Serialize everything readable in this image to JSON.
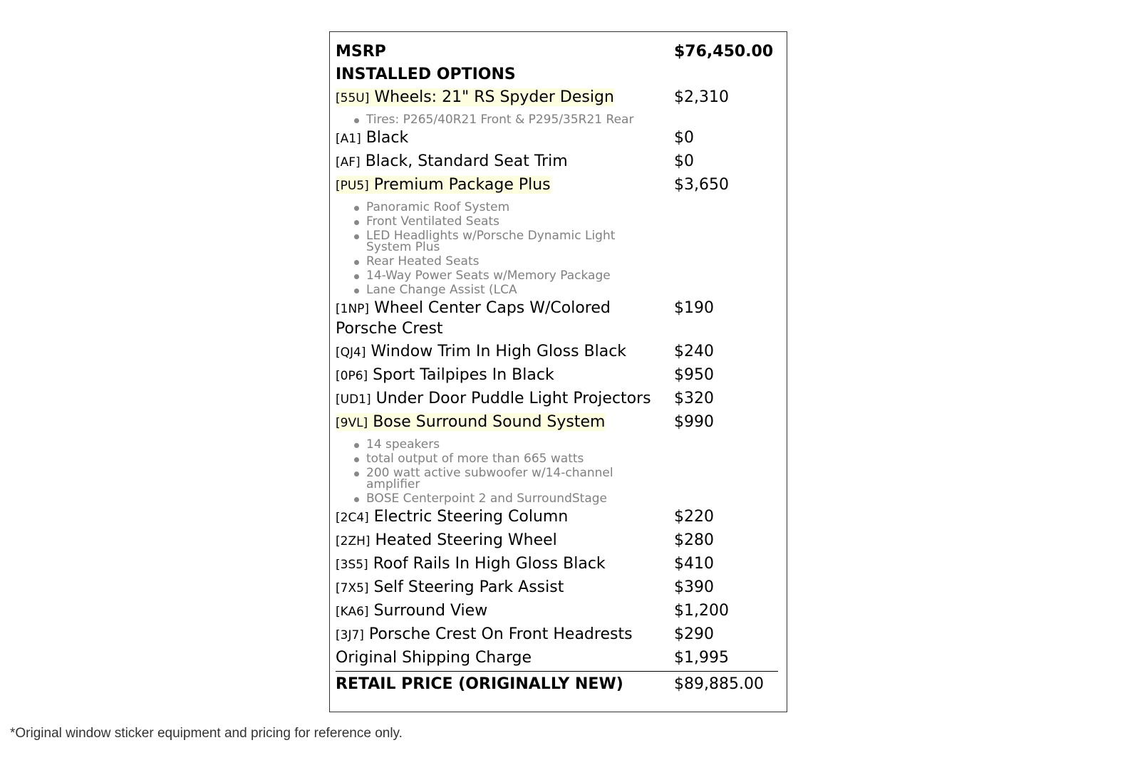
{
  "msrp": {
    "label": "MSRP",
    "value": "$76,450.00"
  },
  "installed_options_label": "INSTALLED OPTIONS",
  "options": [
    {
      "code": "[55U]",
      "name": "Wheels: 21\" RS Spyder Design",
      "price": "$2,310",
      "highlight": true,
      "bullets": [
        "Tires: P265/40R21 Front & P295/35R21 Rear"
      ]
    },
    {
      "code": "[A1]",
      "name": "Black",
      "price": "$0",
      "highlight": false,
      "bullets": []
    },
    {
      "code": "[AF]",
      "name": "Black, Standard Seat Trim",
      "price": "$0",
      "highlight": false,
      "bullets": []
    },
    {
      "code": "[PU5]",
      "name": "Premium Package Plus",
      "price": "$3,650",
      "highlight": true,
      "bullets": [
        "Panoramic Roof System",
        "Front Ventilated Seats",
        "LED Headlights w/Porsche Dynamic Light System Plus",
        "Rear Heated Seats",
        "14-Way Power Seats w/Memory Package",
        "Lane Change Assist (LCA"
      ]
    },
    {
      "code": "[1NP]",
      "name": "Wheel Center Caps W/Colored Porsche Crest",
      "price": "$190",
      "highlight": false,
      "bullets": []
    },
    {
      "code": "[QJ4]",
      "name": "Window Trim In High Gloss Black",
      "price": "$240",
      "highlight": false,
      "bullets": []
    },
    {
      "code": "[0P6]",
      "name": "Sport Tailpipes In Black",
      "price": "$950",
      "highlight": false,
      "bullets": []
    },
    {
      "code": "[UD1]",
      "name": "Under Door Puddle Light Projectors",
      "price": "$320",
      "highlight": false,
      "bullets": []
    },
    {
      "code": "[9VL]",
      "name": "Bose Surround Sound System",
      "price": "$990",
      "highlight": true,
      "bullets": [
        "14 speakers",
        "total output of more than 665 watts",
        "200 watt active subwoofer w/14-channel amplifier",
        "BOSE Centerpoint 2 and SurroundStage"
      ]
    },
    {
      "code": "[2C4]",
      "name": "Electric Steering Column",
      "price": "$220",
      "highlight": false,
      "bullets": []
    },
    {
      "code": "[2ZH]",
      "name": "Heated Steering Wheel",
      "price": "$280",
      "highlight": false,
      "bullets": []
    },
    {
      "code": "[3S5]",
      "name": "Roof Rails In High Gloss Black",
      "price": "$410",
      "highlight": false,
      "bullets": []
    },
    {
      "code": "[7X5]",
      "name": "Self Steering Park Assist",
      "price": "$390",
      "highlight": false,
      "bullets": []
    },
    {
      "code": "[KA6]",
      "name": "Surround View",
      "price": "$1,200",
      "highlight": false,
      "bullets": []
    },
    {
      "code": "[3J7]",
      "name": "Porsche Crest On Front Headrests",
      "price": "$290",
      "highlight": false,
      "bullets": []
    }
  ],
  "shipping": {
    "label": "Original Shipping Charge",
    "value": "$1,995"
  },
  "retail": {
    "label": "RETAIL PRICE (ORIGINALLY NEW)",
    "value": "$89,885.00"
  },
  "footnote": "*Original window sticker equipment and pricing for reference only.",
  "colors": {
    "highlight": "#fdfde0",
    "bullet_text": "#808080"
  }
}
